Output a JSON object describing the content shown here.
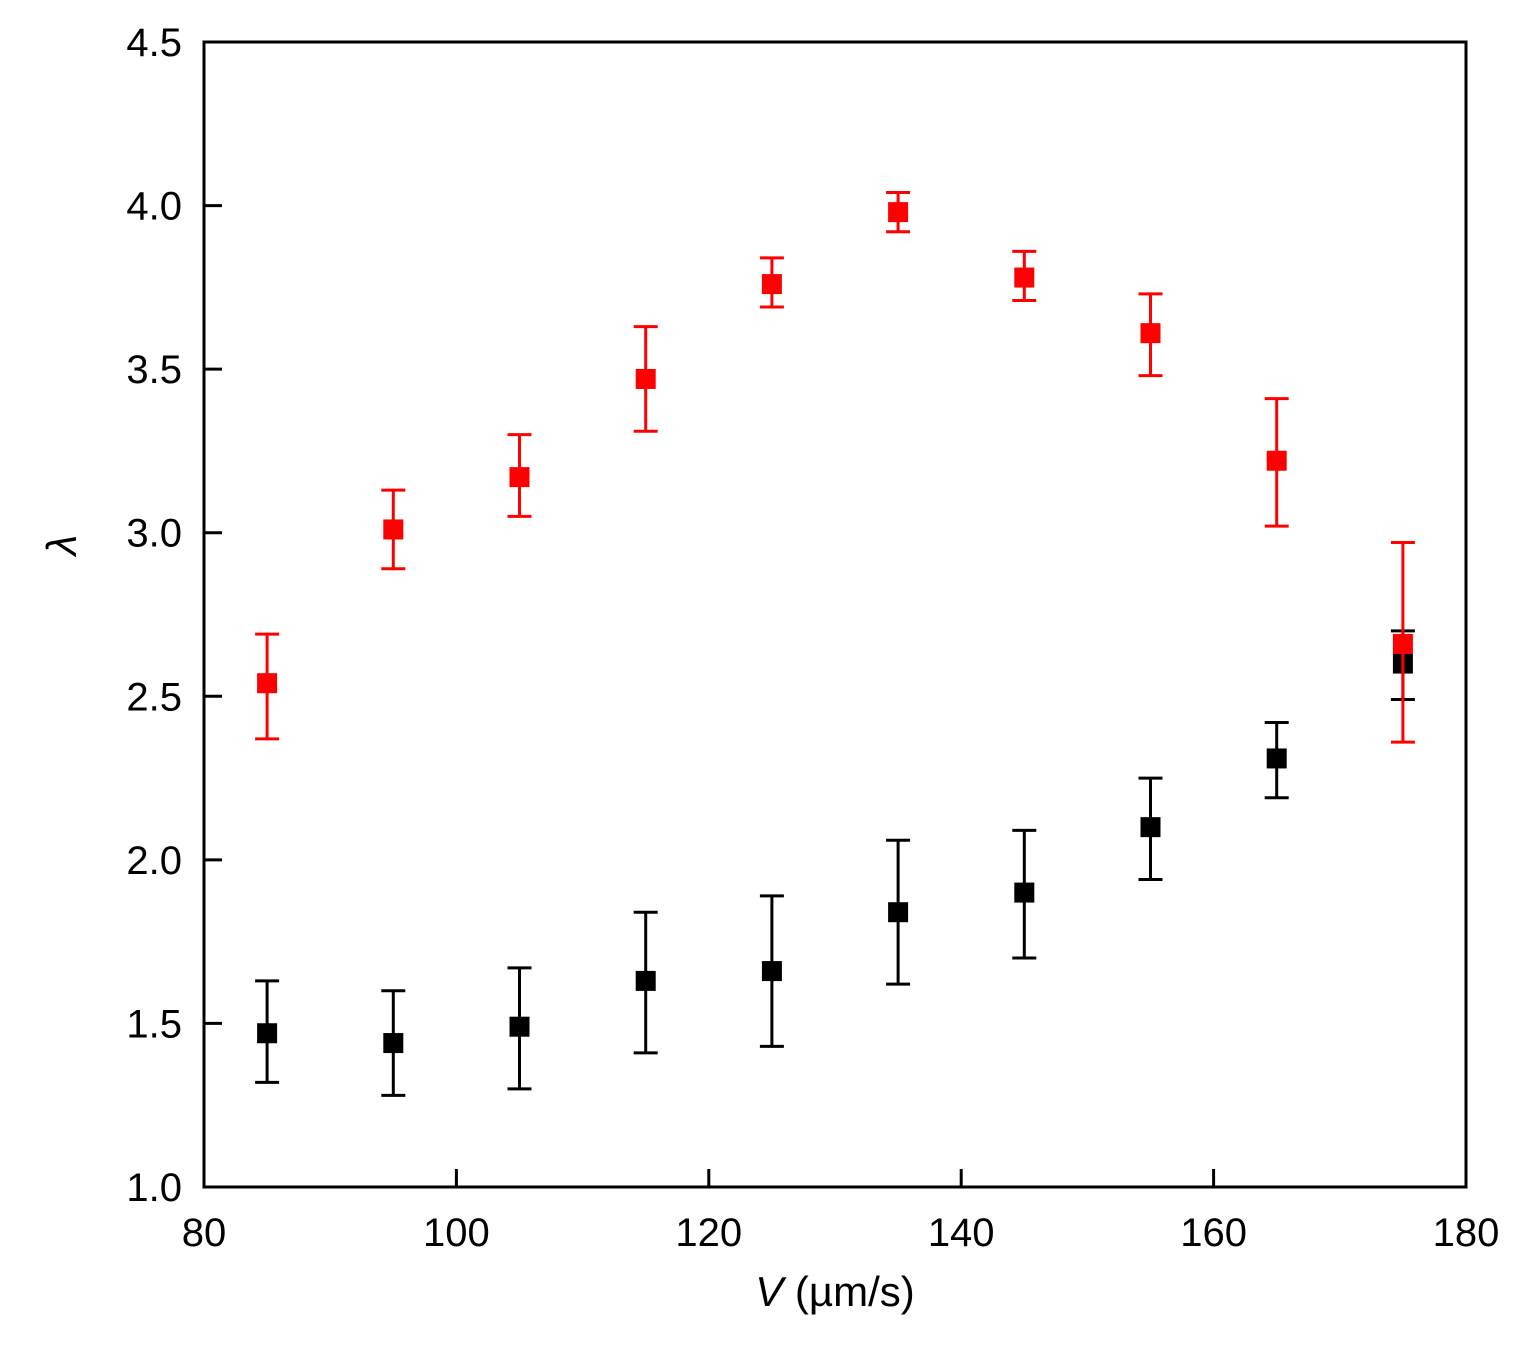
{
  "chart_data": {
    "type": "scatter",
    "title": "",
    "xlabel": {
      "var": "V",
      "unit": " (µm/s)"
    },
    "ylabel": "λ",
    "xlim": [
      80,
      180
    ],
    "ylim": [
      1.0,
      4.5
    ],
    "xticks": [
      80,
      100,
      120,
      140,
      160,
      180
    ],
    "yticks": [
      1.0,
      1.5,
      2.0,
      2.5,
      3.0,
      3.5,
      4.0,
      4.5
    ],
    "xtick_labels": [
      "80",
      "100",
      "120",
      "140",
      "160",
      "180"
    ],
    "ytick_labels": [
      "1.0",
      "1.5",
      "2.0",
      "2.5",
      "3.0",
      "3.5",
      "4.0",
      "4.5"
    ],
    "grid": false,
    "x": [
      85,
      95,
      105,
      115,
      125,
      135,
      145,
      155,
      165,
      175
    ],
    "series": [
      {
        "name": "black",
        "color": "#000000",
        "values": [
          1.47,
          1.44,
          1.49,
          1.63,
          1.66,
          1.84,
          1.9,
          2.1,
          2.31,
          2.6
        ],
        "err_high": [
          1.63,
          1.6,
          1.67,
          1.84,
          1.89,
          2.06,
          2.09,
          2.25,
          2.42,
          2.7
        ],
        "err_low": [
          1.32,
          1.28,
          1.3,
          1.41,
          1.43,
          1.62,
          1.7,
          1.94,
          2.19,
          2.49
        ]
      },
      {
        "name": "red",
        "color": "#ff0000",
        "values": [
          2.54,
          3.01,
          3.17,
          3.47,
          3.76,
          3.98,
          3.78,
          3.61,
          3.22,
          2.66
        ],
        "err_high": [
          2.69,
          3.13,
          3.3,
          3.63,
          3.84,
          4.04,
          3.86,
          3.73,
          3.41,
          2.97
        ],
        "err_low": [
          2.37,
          2.89,
          3.05,
          3.31,
          3.69,
          3.92,
          3.71,
          3.48,
          3.02,
          2.36
        ]
      }
    ]
  }
}
